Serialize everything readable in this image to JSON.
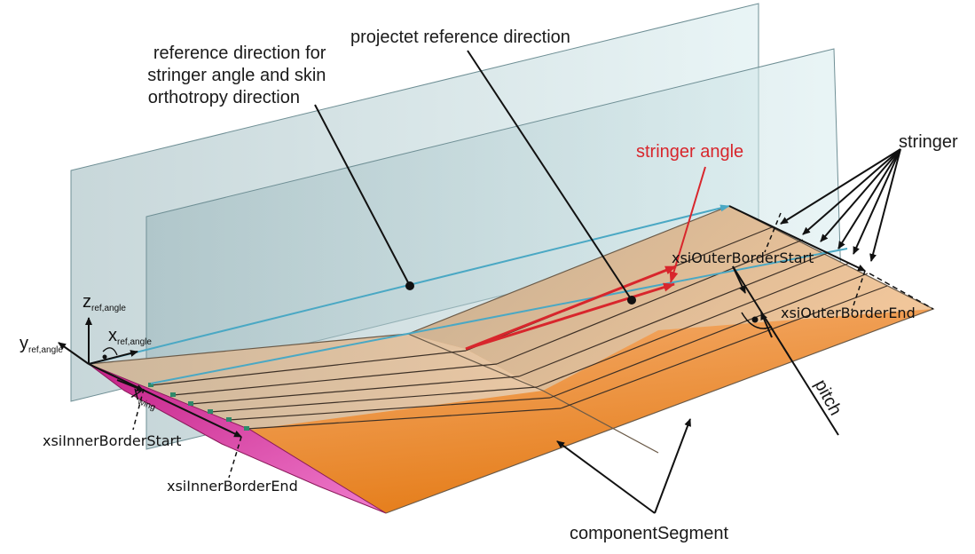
{
  "labels": {
    "reference_direction": [
      "reference direction for",
      "stringer angle and skin",
      "orthotropy direction"
    ],
    "projected_reference_direction": "projectet reference direction",
    "stringer_angle": "stringer angle",
    "stringer": "stringer",
    "xsi_outer_border_start": "xsiOuterBorderStart",
    "xsi_outer_border_end": "xsiOuterBorderEnd",
    "xsi_inner_border_start": "xsiInnerBorderStart",
    "xsi_inner_border_end": "xsiInnerBorderEnd",
    "pitch": "pitch",
    "component_segment": "componentSegment"
  },
  "axes": {
    "z": {
      "main": "z",
      "sub": "ref,angle"
    },
    "y": {
      "main": "y",
      "sub": "ref,angle"
    },
    "x": {
      "main": "x",
      "sub": "ref,angle"
    },
    "x_wing": {
      "main": "x",
      "sub": "wing"
    }
  },
  "colors": {
    "plane": "#9fc3c9",
    "skin_orange": "#f09a4a",
    "skin_dark": "#c06a20",
    "leading_edge_pink": "#d8399a",
    "reference_line": "#4aa8c4",
    "stringer_angle_red": "#d8262c",
    "stringer_node_green": "#2f8a6a"
  }
}
